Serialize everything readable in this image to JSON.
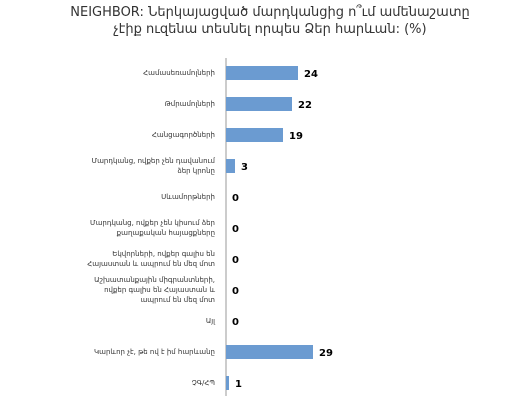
{
  "chart_data": {
    "type": "bar",
    "orientation": "horizontal",
    "title": "NEIGHBOR: Ներկայացված մարդկանցից ո՞ւմ ամենաշատը չէիք ուզենա տեսնել որպես Ձեր հարևան: (%)",
    "categories": [
      "Համասեռամոլների",
      "Թմրամոլների",
      "Հանցագործների",
      "Մարդկանց, ովքեր չեն դավանում ձեր կրոնը",
      "Սևամորթների",
      "Մարդկանց, ովքեր չեն կիսում ձեր քաղաքական հայացքները",
      "Եկվորների, ովքեր գալիս են Հայաստան և ապրում են մեզ մոտ",
      "Աշխատանքային միգրանտների, ովքեր գալիս են Հայաստան և ապրում են մեզ մոտ",
      "Այլ",
      "Կարևոր չէ, թե ով է իմ հարևանը",
      "ՉԳ/ՀՊ"
    ],
    "values": [
      24,
      22,
      19,
      3,
      0,
      0,
      0,
      0,
      0,
      29,
      1
    ],
    "color": "#6b9bd1",
    "xlim": [
      0,
      30
    ]
  }
}
